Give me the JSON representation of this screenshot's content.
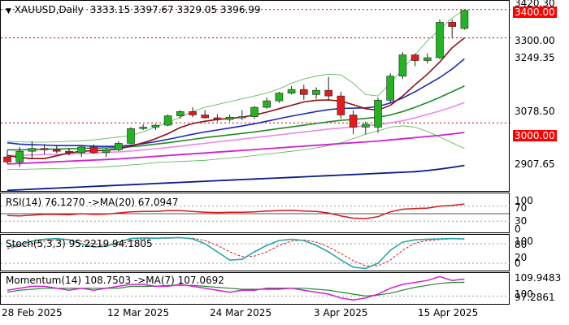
{
  "main": {
    "symbol": "XAUUSD,Daily",
    "ohlc": "3333.15 3397.67 3329.05 3396.99",
    "labels": {
      "l3420": "3420.30",
      "l3400": "3400.00",
      "l3300": "3300.00",
      "l3249": "3249.35",
      "l3078": "3078.50",
      "l3000": "3000.00",
      "l2907": "2907.65"
    }
  },
  "rsi": {
    "title": "RSI(14) 76.1270  ->MA(20) 67.0947",
    "labels": {
      "l100": "100",
      "l70": "70",
      "l30": "30",
      "l0": "0"
    }
  },
  "stoch": {
    "title": "Stoch(5,3,3) 95.2219 94.1805",
    "labels": {
      "l100": "100",
      "l80": "80",
      "l20": "20",
      "l0": "0"
    }
  },
  "momentum": {
    "title": "Momentum(14) 108.7503  ->MA(7) 107.0692",
    "labels": {
      "l109": "109.9483",
      "l100": "100",
      "l97": "97.2861"
    }
  },
  "xaxis": {
    "d1": "28 Feb 2025",
    "d2": "12 Mar 2025",
    "d3": "24 Mar 2025",
    "d4": "3 Apr 2025",
    "d5": "15 Apr 2025"
  },
  "colors": {
    "bull": "#22b522",
    "bear": "#e51b1b",
    "sma_dark_red": "#8b1010",
    "sma_blue": "#1a2ab8",
    "sma_green": "#1f8a2a",
    "sma_pink": "#e98ae8",
    "sma_magenta": "#d21fd2",
    "sma_navy": "#0a1a8a",
    "band_green": "#55b055",
    "rsi_line": "#d11a1a",
    "stoch_main": "#2aa6a6",
    "mom_main": "#d21fd2",
    "mom_ma": "#1f8a2a"
  },
  "candles": [
    {
      "o": 2880,
      "h": 2905,
      "l": 2855,
      "c": 2862
    },
    {
      "o": 2862,
      "h": 2915,
      "l": 2845,
      "c": 2900
    },
    {
      "o": 2900,
      "h": 2935,
      "l": 2875,
      "c": 2910
    },
    {
      "o": 2910,
      "h": 2925,
      "l": 2890,
      "c": 2905
    },
    {
      "o": 2905,
      "h": 2920,
      "l": 2893,
      "c": 2900
    },
    {
      "o": 2900,
      "h": 2912,
      "l": 2885,
      "c": 2895
    },
    {
      "o": 2895,
      "h": 2920,
      "l": 2880,
      "c": 2915
    },
    {
      "o": 2915,
      "h": 2925,
      "l": 2890,
      "c": 2895
    },
    {
      "o": 2895,
      "h": 2912,
      "l": 2880,
      "c": 2905
    },
    {
      "o": 2905,
      "h": 2935,
      "l": 2900,
      "c": 2928
    },
    {
      "o": 2928,
      "h": 2985,
      "l": 2925,
      "c": 2980
    },
    {
      "o": 2980,
      "h": 2995,
      "l": 2975,
      "c": 2985
    },
    {
      "o": 2985,
      "h": 2995,
      "l": 2975,
      "c": 2992
    },
    {
      "o": 2992,
      "h": 3030,
      "l": 2988,
      "c": 3025
    },
    {
      "o": 3025,
      "h": 3045,
      "l": 3015,
      "c": 3040
    },
    {
      "o": 3040,
      "h": 3055,
      "l": 3020,
      "c": 3028
    },
    {
      "o": 3028,
      "h": 3045,
      "l": 3015,
      "c": 3018
    },
    {
      "o": 3018,
      "h": 3030,
      "l": 3005,
      "c": 3012
    },
    {
      "o": 3012,
      "h": 3030,
      "l": 3005,
      "c": 3020
    },
    {
      "o": 3020,
      "h": 3045,
      "l": 3010,
      "c": 3022
    },
    {
      "o": 3022,
      "h": 3060,
      "l": 3015,
      "c": 3055
    },
    {
      "o": 3055,
      "h": 3090,
      "l": 3050,
      "c": 3078
    },
    {
      "o": 3078,
      "h": 3110,
      "l": 3070,
      "c": 3105
    },
    {
      "o": 3105,
      "h": 3130,
      "l": 3100,
      "c": 3118
    },
    {
      "o": 3118,
      "h": 3135,
      "l": 3082,
      "c": 3100
    },
    {
      "o": 3100,
      "h": 3125,
      "l": 3085,
      "c": 3115
    },
    {
      "o": 3115,
      "h": 3162,
      "l": 3078,
      "c": 3095
    },
    {
      "o": 3095,
      "h": 3110,
      "l": 3015,
      "c": 3028
    },
    {
      "o": 3028,
      "h": 3045,
      "l": 2960,
      "c": 2985
    },
    {
      "o": 2985,
      "h": 3005,
      "l": 2960,
      "c": 2995
    },
    {
      "o": 2985,
      "h": 3090,
      "l": 2965,
      "c": 3080
    },
    {
      "o": 3080,
      "h": 3175,
      "l": 3070,
      "c": 3165
    },
    {
      "o": 3165,
      "h": 3250,
      "l": 3155,
      "c": 3240
    },
    {
      "o": 3240,
      "h": 3245,
      "l": 3200,
      "c": 3220
    },
    {
      "o": 3220,
      "h": 3245,
      "l": 3210,
      "c": 3230
    },
    {
      "o": 3230,
      "h": 3365,
      "l": 3225,
      "c": 3355
    },
    {
      "o": 3355,
      "h": 3365,
      "l": 3300,
      "c": 3340
    },
    {
      "o": 3333.15,
      "h": 3397.67,
      "l": 3329.05,
      "c": 3396.99
    }
  ],
  "ma_main": {
    "dark_red": [
      2885,
      2878,
      2874,
      2874,
      2884,
      2894,
      2900,
      2902,
      2904,
      2908,
      2918,
      2930,
      2944,
      2962,
      2984,
      2998,
      3006,
      3012,
      3016,
      3020,
      3028,
      3038,
      3050,
      3062,
      3074,
      3080,
      3081,
      3077,
      3064,
      3050,
      3045,
      3062,
      3095,
      3135,
      3172,
      3215,
      3265,
      3300
    ],
    "blue": [
      2930,
      2925,
      2923,
      2922,
      2920,
      2920,
      2920,
      2918,
      2917,
      2918,
      2921,
      2927,
      2934,
      2942,
      2951,
      2960,
      2968,
      2975,
      2982,
      2989,
      2997,
      3006,
      3015,
      3024,
      3032,
      3040,
      3047,
      3051,
      3052,
      3053,
      3058,
      3070,
      3088,
      3110,
      3135,
      3160,
      3190,
      3226
    ],
    "green": [
      2905,
      2905,
      2906,
      2907,
      2908,
      2909,
      2910,
      2911,
      2912,
      2913,
      2916,
      2920,
      2925,
      2930,
      2936,
      2942,
      2948,
      2953,
      2958,
      2963,
      2968,
      2974,
      2980,
      2986,
      2992,
      2998,
      3004,
      3009,
      3012,
      3016,
      3020,
      3028,
      3040,
      3055,
      3072,
      3090,
      3110,
      3130
    ],
    "pink": [
      2885,
      2886,
      2887,
      2888,
      2889,
      2890,
      2892,
      2894,
      2896,
      2898,
      2901,
      2905,
      2909,
      2913,
      2918,
      2923,
      2928,
      2933,
      2938,
      2943,
      2948,
      2953,
      2958,
      2963,
      2968,
      2973,
      2978,
      2982,
      2986,
      2990,
      2994,
      3000,
      3008,
      3018,
      3030,
      3042,
      3056,
      3072
    ],
    "magenta": [
      2855,
      2857,
      2859,
      2861,
      2863,
      2865,
      2867,
      2869,
      2871,
      2873,
      2876,
      2879,
      2882,
      2885,
      2888,
      2891,
      2894,
      2897,
      2900,
      2903,
      2906,
      2909,
      2912,
      2915,
      2918,
      2921,
      2924,
      2927,
      2930,
      2933,
      2936,
      2940,
      2944,
      2948,
      2952,
      2956,
      2961,
      2966
    ],
    "navy": [
      2762,
      2764,
      2766,
      2768,
      2770,
      2772,
      2774,
      2776,
      2778,
      2780,
      2782,
      2784,
      2786,
      2788,
      2790,
      2792,
      2794,
      2796,
      2798,
      2800,
      2802,
      2804,
      2806,
      2808,
      2810,
      2812,
      2814,
      2816,
      2818,
      2820,
      2822,
      2824,
      2826,
      2828,
      2832,
      2837,
      2843,
      2850
    ],
    "band_up": [
      2935,
      2933,
      2932,
      2932,
      2933,
      2935,
      2937,
      2940,
      2945,
      2950,
      2956,
      2968,
      2985,
      3002,
      3020,
      3040,
      3055,
      3065,
      3075,
      3085,
      3095,
      3105,
      3120,
      3140,
      3155,
      3165,
      3172,
      3170,
      3140,
      3100,
      3095,
      3140,
      3190,
      3240,
      3290,
      3330,
      3370,
      3400
    ],
    "band_dn": [
      2835,
      2836,
      2837,
      2838,
      2839,
      2840,
      2842,
      2843,
      2845,
      2848,
      2852,
      2855,
      2860,
      2862,
      2864,
      2866,
      2868,
      2872,
      2876,
      2880,
      2885,
      2890,
      2895,
      2900,
      2905,
      2912,
      2920,
      2930,
      2945,
      2960,
      2972,
      2985,
      2990,
      2985,
      2970,
      2950,
      2930,
      2910
    ]
  },
  "rsi_series": [
    45,
    44,
    46,
    48,
    48,
    47,
    50,
    48,
    49,
    52,
    55,
    56,
    56,
    58,
    58,
    56,
    54,
    53,
    54,
    54,
    55,
    57,
    58,
    59,
    57,
    56,
    52,
    44,
    38,
    37,
    42,
    55,
    62,
    64,
    65,
    70,
    72,
    76
  ],
  "stoch_series": {
    "main": [
      70,
      78,
      88,
      94,
      96,
      92,
      80,
      70,
      72,
      85,
      96,
      98,
      97,
      98,
      99,
      95,
      80,
      55,
      30,
      32,
      55,
      75,
      90,
      94,
      90,
      75,
      55,
      30,
      8,
      4,
      20,
      60,
      85,
      92,
      94,
      95,
      96,
      95
    ],
    "signal": [
      65,
      72,
      80,
      88,
      92,
      93,
      88,
      80,
      75,
      78,
      88,
      94,
      97,
      97,
      98,
      97,
      90,
      75,
      55,
      40,
      42,
      55,
      75,
      88,
      92,
      85,
      70,
      50,
      28,
      12,
      12,
      30,
      60,
      82,
      90,
      93,
      95,
      94
    ]
  },
  "mom_series": {
    "main": [
      103,
      104,
      105,
      105,
      104,
      103,
      104,
      103,
      104,
      105,
      106,
      106,
      105,
      105,
      106,
      105,
      104,
      103,
      102,
      103,
      103,
      104,
      104,
      104,
      103,
      102,
      101,
      99,
      98,
      99,
      101,
      104,
      106,
      107,
      108,
      110,
      108,
      108.75
    ],
    "ma": [
      102,
      103,
      103.5,
      104,
      104,
      104,
      104,
      104,
      104,
      104,
      105,
      105,
      105,
      105.5,
      105.5,
      105.5,
      105,
      104.5,
      104,
      103.5,
      103.5,
      103.5,
      103.5,
      104,
      104,
      103.5,
      103,
      102,
      101,
      100,
      100.5,
      101.5,
      103,
      104.5,
      105.5,
      106.5,
      107,
      107.07
    ]
  }
}
